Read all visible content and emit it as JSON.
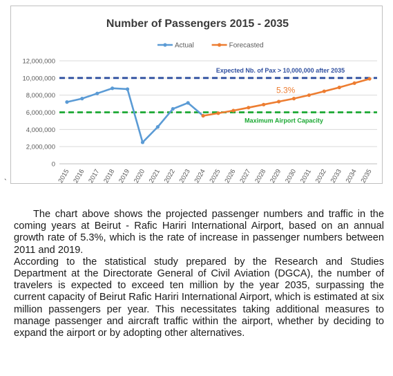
{
  "chart_data": {
    "type": "line",
    "title": "Number of Passengers 2015 - 2035",
    "xlabel": "",
    "ylabel": "",
    "categories": [
      "2015",
      "2016",
      "2017",
      "2018",
      "2019",
      "2020",
      "2021",
      "2022",
      "2023",
      "2024",
      "2025",
      "2026",
      "2027",
      "2028",
      "2029",
      "2030",
      "2031",
      "2032",
      "2033",
      "2034",
      "2035"
    ],
    "ylim": [
      0,
      12000000
    ],
    "yticks": [
      "0",
      "2,000,000",
      "4,000,000",
      "6,000,000",
      "8,000,000",
      "10,000,000",
      "12,000,000"
    ],
    "ytick_values": [
      0,
      2000000,
      4000000,
      6000000,
      8000000,
      10000000,
      12000000
    ],
    "grid": true,
    "legend": "top-center",
    "series": [
      {
        "name": "Actual",
        "color": "#5b9bd5",
        "x": [
          "2015",
          "2016",
          "2017",
          "2018",
          "2019",
          "2020",
          "2021",
          "2022",
          "2023",
          "2024"
        ],
        "values": [
          7200000,
          7600000,
          8200000,
          8800000,
          8700000,
          2500000,
          4300000,
          6400000,
          7100000,
          5600000
        ]
      },
      {
        "name": "Forecasted",
        "color": "#ed7d31",
        "x": [
          "2024",
          "2025",
          "2026",
          "2027",
          "2028",
          "2029",
          "2030",
          "2031",
          "2032",
          "2033",
          "2034",
          "2035"
        ],
        "values": [
          5600000,
          5900000,
          6200000,
          6550000,
          6900000,
          7250000,
          7600000,
          8000000,
          8450000,
          8900000,
          9400000,
          9900000
        ]
      }
    ],
    "reference_lines": [
      {
        "value": 10000000,
        "label": "Expected Nb. of Pax > 10,000,000  after 2035",
        "color": "#2f4f9f"
      },
      {
        "value": 6000000,
        "label": "Maximum Airport Capacity",
        "color": "#1aa832"
      }
    ],
    "annotation": {
      "text": "5.3%",
      "color": "#ed7d31",
      "x": "2029",
      "y": 8000000
    }
  },
  "stray_mark": "`",
  "body": {
    "para1": "The chart above shows the projected passenger numbers and traffic in the coming years at Beirut - Rafic Hariri International Airport, based on an annual growth rate of 5.3%, which is the rate of increase in passenger numbers between 2011 and 2019.",
    "para2": "According to the statistical study prepared by the Research and Studies Department at the Directorate General of Civil Aviation (DGCA), the number of travelers is expected to exceed ten million by the year 2035, surpassing the current capacity of Beirut Rafic Hariri International Airport, which is estimated at six million passengers per year. This necessitates taking additional measures to manage passenger and aircraft traffic within the airport, whether by deciding to expand the airport or by adopting other alternatives."
  }
}
